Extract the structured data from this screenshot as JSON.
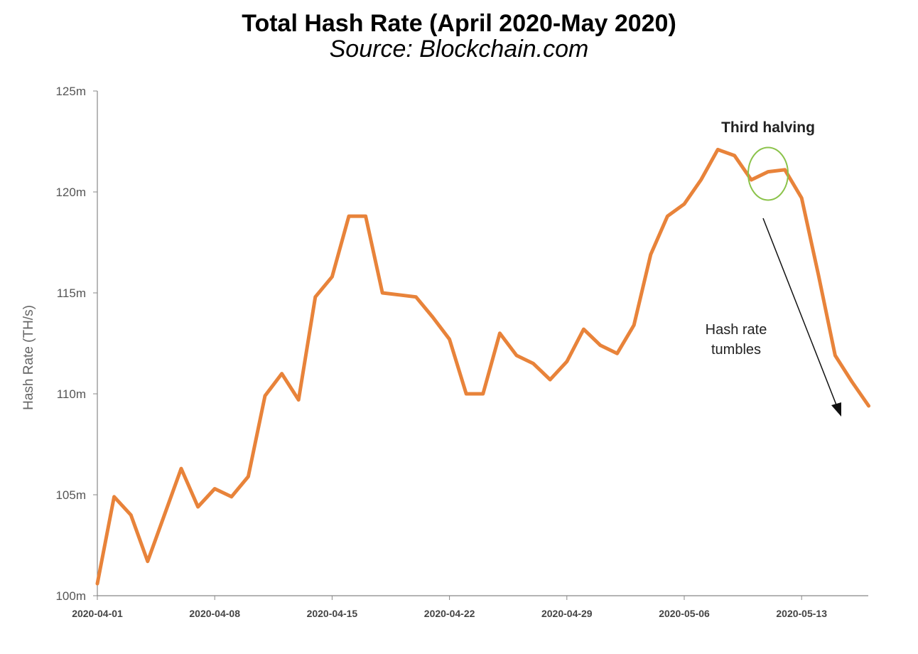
{
  "chart_data": {
    "type": "line",
    "title": "Total Hash Rate (April 2020-May 2020)",
    "subtitle": "Source: Blockchain.com",
    "ylabel": "Hash Rate (TH/s)",
    "xlabel": "",
    "ylim": [
      100,
      125
    ],
    "yticks": [
      100,
      105,
      110,
      115,
      120,
      125
    ],
    "ytick_labels": [
      "100m",
      "105m",
      "110m",
      "115m",
      "120m",
      "125m"
    ],
    "x_start": "2020-04-01",
    "xticks": [
      "2020-04-01",
      "2020-04-08",
      "2020-04-15",
      "2020-04-22",
      "2020-04-29",
      "2020-05-06",
      "2020-05-13"
    ],
    "grid": false,
    "line_color": "#E8833A",
    "series": [
      {
        "x": [
          "2020-04-01",
          "2020-04-02",
          "2020-04-03",
          "2020-04-04",
          "2020-04-05",
          "2020-04-06",
          "2020-04-07",
          "2020-04-08",
          "2020-04-09",
          "2020-04-10",
          "2020-04-11",
          "2020-04-12",
          "2020-04-13",
          "2020-04-14",
          "2020-04-15",
          "2020-04-16",
          "2020-04-17",
          "2020-04-18",
          "2020-04-19",
          "2020-04-20",
          "2020-04-21",
          "2020-04-22",
          "2020-04-23",
          "2020-04-24",
          "2020-04-25",
          "2020-04-26",
          "2020-04-27",
          "2020-04-28",
          "2020-04-29",
          "2020-04-30",
          "2020-05-01",
          "2020-05-02",
          "2020-05-03",
          "2020-05-04",
          "2020-05-05",
          "2020-05-06",
          "2020-05-07",
          "2020-05-08",
          "2020-05-09",
          "2020-05-10",
          "2020-05-11",
          "2020-05-12",
          "2020-05-13",
          "2020-05-14",
          "2020-05-15",
          "2020-05-16",
          "2020-05-17"
        ],
        "values": [
          100.6,
          104.9,
          104.0,
          101.7,
          104.0,
          106.3,
          104.4,
          105.3,
          104.9,
          105.9,
          109.9,
          111.0,
          109.7,
          114.8,
          115.8,
          118.8,
          118.8,
          115.0,
          114.9,
          114.8,
          113.8,
          112.7,
          110.0,
          110.0,
          113.0,
          111.9,
          111.5,
          110.7,
          111.6,
          113.2,
          112.4,
          112.0,
          113.4,
          116.9,
          118.8,
          119.4,
          120.6,
          122.1,
          121.8,
          120.6,
          121.0,
          121.1,
          119.7,
          115.9,
          111.9,
          110.6,
          109.4
        ]
      }
    ],
    "annotations": {
      "halving_label": "Third halving",
      "halving_date": "2020-05-11",
      "halving_value": 120.9,
      "tumble_line1": "Hash rate",
      "tumble_line2": "tumbles"
    }
  }
}
